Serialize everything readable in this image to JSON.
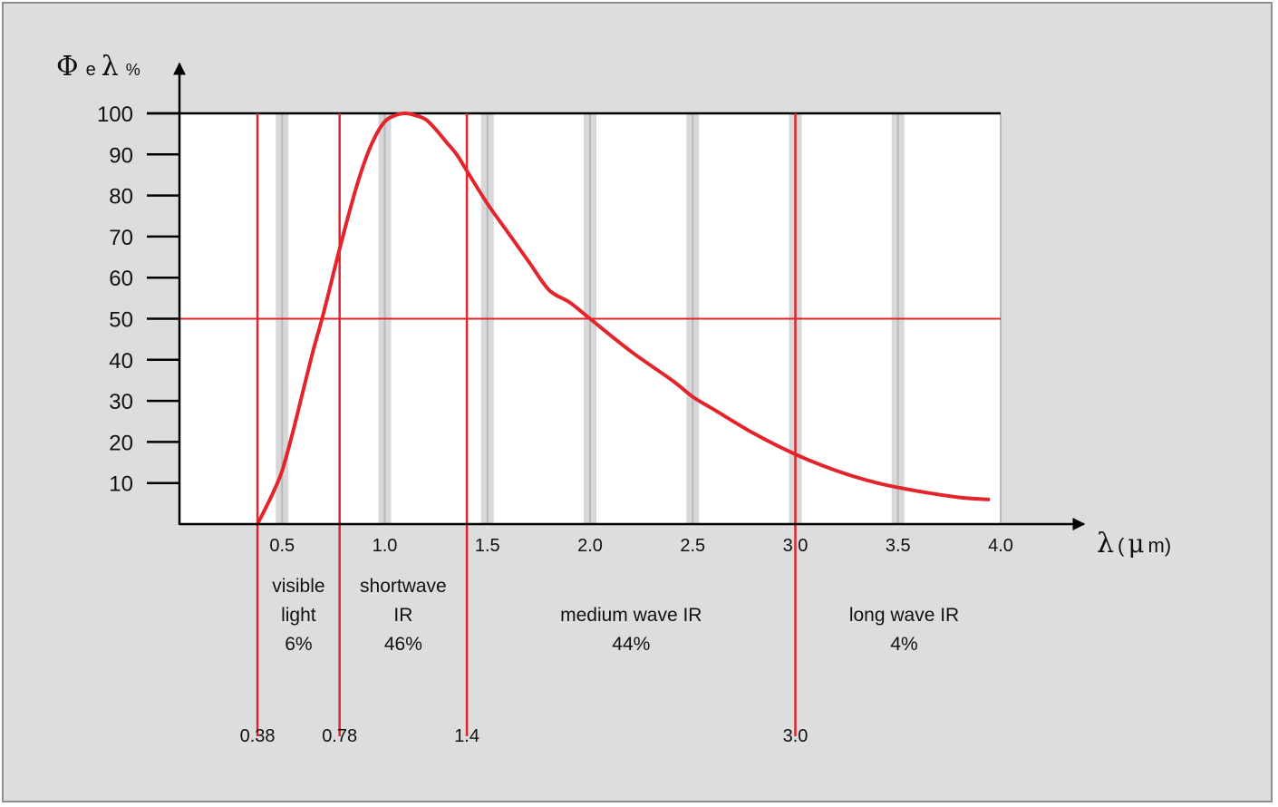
{
  "chart_data": {
    "type": "line",
    "title": "",
    "ylabel": {
      "phi": "Φ",
      "sub": "e",
      "lambda": "λ",
      "unit": "%"
    },
    "xlabel": {
      "lambda": "λ",
      "paren_open": "(",
      "mu": "μ",
      "rest": "m)"
    },
    "xlim": [
      0.0,
      4.0
    ],
    "ylim": [
      0,
      100
    ],
    "y_ticks": [
      10,
      20,
      30,
      40,
      50,
      60,
      70,
      80,
      90,
      100
    ],
    "x_ticks": [
      {
        "value": 0.5,
        "label": "0.5"
      },
      {
        "value": 1.0,
        "label": "1.0"
      },
      {
        "value": 1.5,
        "label": "1.5"
      },
      {
        "value": 2.0,
        "label": "2.0"
      },
      {
        "value": 2.5,
        "label": "2.5"
      },
      {
        "value": 3.0,
        "label": "3.0"
      },
      {
        "value": 3.5,
        "label": "3.5"
      },
      {
        "value": 4.0,
        "label": "4.0"
      }
    ],
    "reference_line_y": 50,
    "boundaries": [
      {
        "value": 0.38,
        "label": "0.38"
      },
      {
        "value": 0.78,
        "label": "0.78"
      },
      {
        "value": 1.4,
        "label": "1.4"
      },
      {
        "value": 3.0,
        "label": "3.0"
      }
    ],
    "regions": [
      {
        "lines": [
          "visible",
          "light",
          "6%"
        ],
        "x_center": 0.58
      },
      {
        "lines": [
          "shortwave",
          "IR",
          "46%"
        ],
        "x_center": 1.09
      },
      {
        "lines": [
          "medium wave IR",
          "44%"
        ],
        "x_center": 2.2
      },
      {
        "lines": [
          "long wave IR",
          "4%"
        ],
        "x_center": 3.53
      }
    ],
    "series": [
      {
        "x": [
          0.38,
          0.45,
          0.5,
          0.55,
          0.6,
          0.65,
          0.7,
          0.78,
          0.85,
          0.9,
          0.95,
          1.0,
          1.05,
          1.1,
          1.15,
          1.2,
          1.25,
          1.3,
          1.35,
          1.4,
          1.5,
          1.6,
          1.7,
          1.8,
          1.9,
          2.0,
          2.2,
          2.4,
          2.5,
          2.6,
          2.8,
          3.0,
          3.2,
          3.4,
          3.6,
          3.8,
          3.94
        ],
        "y": [
          0,
          7,
          13,
          22,
          32,
          42,
          51,
          67,
          80,
          88,
          94,
          98,
          99.5,
          100,
          99.5,
          98.5,
          96,
          93,
          90,
          86,
          78,
          71,
          64,
          57,
          54,
          50,
          42,
          35,
          31,
          28,
          22,
          17,
          13,
          10,
          8,
          6.5,
          6
        ]
      }
    ],
    "colors": {
      "curve": "#e3242b",
      "guides": "#e3242b",
      "axis": "#000000",
      "plot_bg": "#ffffff",
      "band": "#d7d8da",
      "band_edge": "#b8b9bc",
      "frame_bg": "#dcdddf"
    }
  }
}
